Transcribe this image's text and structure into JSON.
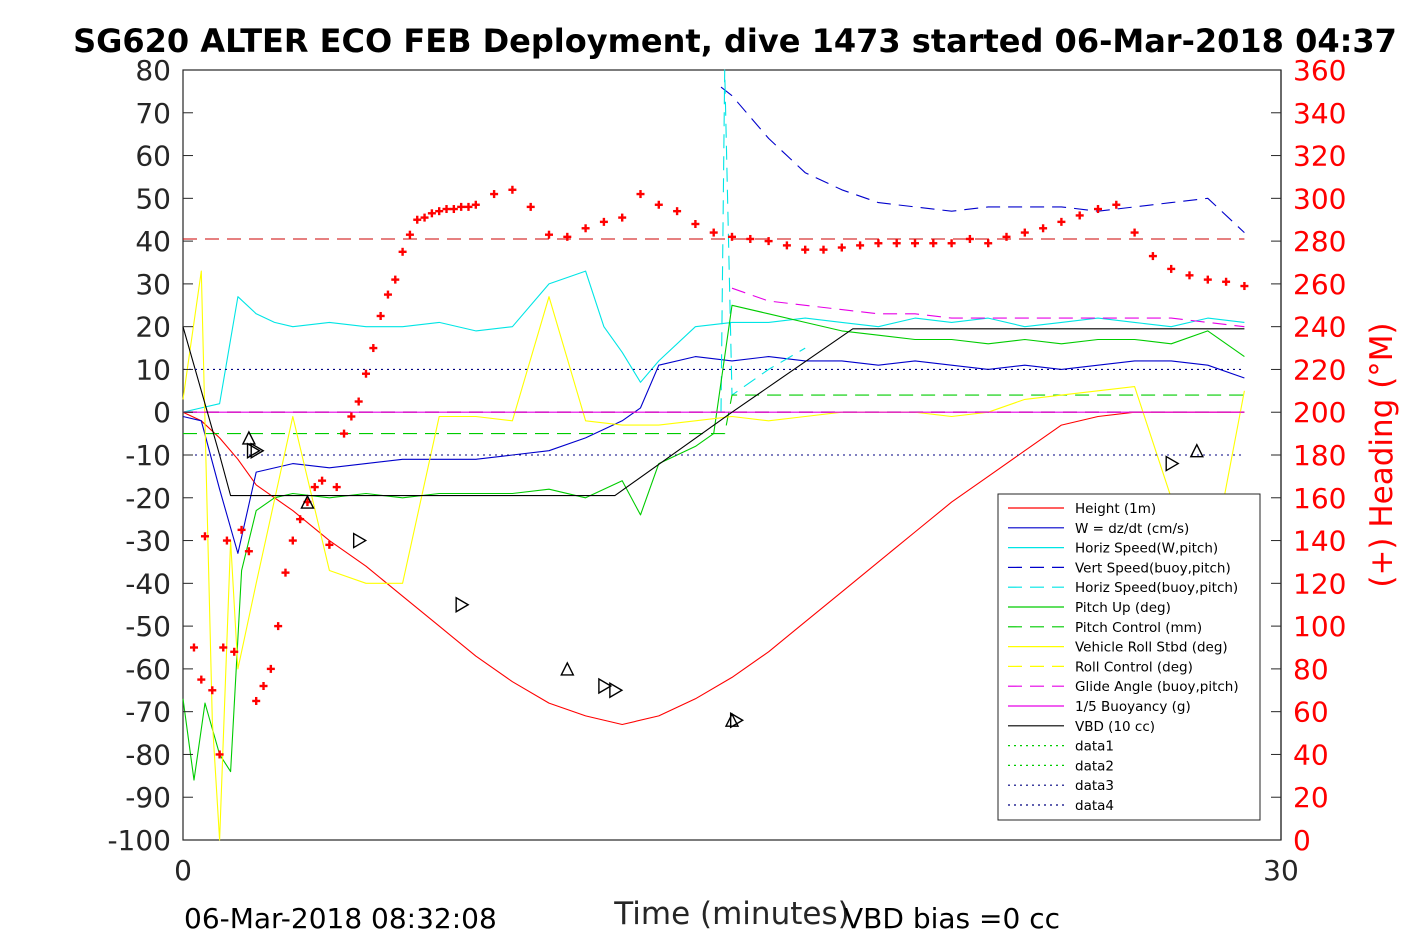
{
  "chart_data": {
    "type": "line",
    "title": "SG620 ALTER ECO FEB Deployment, dive 1473 started 06-Mar-2018 04:37",
    "xlabel": "Time (minutes)",
    "ylabel": "",
    "ylabel_right": "(+) Heading (°M)",
    "xlim": [
      0,
      30
    ],
    "ylim": [
      -100,
      80
    ],
    "ylim_right": [
      0,
      360
    ],
    "x_ticks": [
      0,
      30
    ],
    "y_ticks": [
      80,
      70,
      60,
      50,
      40,
      30,
      20,
      10,
      0,
      -10,
      -20,
      -30,
      -40,
      -50,
      -60,
      -70,
      -80,
      -90,
      -100
    ],
    "y_ticks_right": [
      360,
      340,
      320,
      300,
      280,
      260,
      240,
      220,
      200,
      180,
      160,
      140,
      120,
      100,
      80,
      60,
      40,
      20,
      0
    ],
    "grid": false,
    "legend_position": "bottom-right",
    "footer_left": "06-Mar-2018 08:32:08",
    "footer_right": "VBD bias =0 cc",
    "colors": {
      "height": "#ff0000",
      "w": "#0000cc",
      "horiz_w": "#00e5e5",
      "vert_buoy": "#0000cc",
      "horiz_buoy": "#00e5e5",
      "pitch": "#00cc00",
      "pitch_ctl": "#00cc00",
      "roll": "#ffff00",
      "roll_ctl": "#ffff00",
      "glide": "#e600e6",
      "buoyancy": "#e600e6",
      "vbd": "#000000",
      "heading": "#ff0000",
      "heading_ref": "#cc0000",
      "w_ref": "#000080",
      "zero_ref": "#7f00ff"
    },
    "series": [
      {
        "name": "Height (1m)",
        "style": "solid",
        "color": "#ff0000",
        "x": [
          0,
          0.5,
          1.0,
          1.5,
          2.0,
          3.0,
          4.0,
          5.0,
          6.0,
          7.0,
          8.0,
          9.0,
          10.0,
          11.0,
          12.0,
          13.0,
          14.0,
          15.0,
          16.0,
          17.0,
          18.0,
          19.0,
          20.0,
          21.0,
          22.0,
          23.0,
          24.0,
          25.0,
          26.0,
          27.0,
          28.0,
          29.0
        ],
        "values": [
          0,
          -2,
          -6,
          -11,
          -17,
          -23,
          -30,
          -36,
          -43,
          -50,
          -57,
          -63,
          -68,
          -71,
          -73,
          -71,
          -67,
          -62,
          -56,
          -49,
          -42,
          -35,
          -28,
          -21,
          -15,
          -9,
          -3,
          -1,
          0,
          0,
          0,
          0
        ]
      },
      {
        "name": "W = dz/dt (cm/s)",
        "style": "solid",
        "color": "#0000cc",
        "x": [
          0,
          0.5,
          1.0,
          1.5,
          2.0,
          3.0,
          4.0,
          5.0,
          6.0,
          7.0,
          8.0,
          9.0,
          10.0,
          11.0,
          12.0,
          12.5,
          13.0,
          14.0,
          15.0,
          16.0,
          17.0,
          18.0,
          19.0,
          20.0,
          21.0,
          22.0,
          23.0,
          24.0,
          25.0,
          26.0,
          27.0,
          28.0,
          29.0
        ],
        "values": [
          -1,
          -2,
          -18,
          -33,
          -14,
          -12,
          -13,
          -12,
          -11,
          -11,
          -11,
          -10,
          -9,
          -6,
          -2,
          1,
          11,
          13,
          12,
          13,
          12,
          12,
          11,
          12,
          11,
          10,
          11,
          10,
          11,
          12,
          12,
          11,
          8
        ]
      },
      {
        "name": "Horiz Speed(W,pitch)",
        "style": "solid",
        "color": "#00e5e5",
        "x": [
          0,
          0.5,
          1.0,
          1.5,
          2.0,
          2.5,
          3.0,
          4.0,
          5.0,
          6.0,
          7.0,
          8.0,
          9.0,
          10.0,
          11.0,
          11.5,
          12.0,
          12.5,
          13.0,
          14.0,
          15.0,
          16.0,
          17.0,
          18.0,
          19.0,
          20.0,
          21.0,
          22.0,
          23.0,
          24.0,
          25.0,
          26.0,
          27.0,
          28.0,
          29.0
        ],
        "values": [
          0,
          1,
          2,
          27,
          23,
          21,
          20,
          21,
          20,
          20,
          21,
          19,
          20,
          30,
          33,
          20,
          14,
          7,
          12,
          20,
          21,
          21,
          22,
          21,
          20,
          22,
          21,
          22,
          20,
          21,
          22,
          21,
          20,
          22,
          21
        ]
      },
      {
        "name": "Vert Speed(buoy,pitch)",
        "style": "dashed",
        "color": "#0000cc",
        "x": [
          14.7,
          15.0,
          16.0,
          17.0,
          18.0,
          19.0,
          20.0,
          21.0,
          22.0,
          23.0,
          24.0,
          25.0,
          26.0,
          27.0,
          28.0,
          29.0
        ],
        "values": [
          76,
          74,
          64,
          56,
          52,
          49,
          48,
          47,
          48,
          48,
          48,
          47,
          48,
          49,
          50,
          42
        ]
      },
      {
        "name": "Horiz Speed(buoy,pitch)",
        "style": "dashed",
        "color": "#00e5e5",
        "x": [
          14.7,
          14.8,
          15.0,
          16.0,
          17.0
        ],
        "values": [
          0,
          80,
          4,
          10,
          15
        ]
      },
      {
        "name": "Pitch Up (deg)",
        "style": "solid",
        "color": "#00cc00",
        "x": [
          0,
          0.3,
          0.6,
          1.0,
          1.3,
          1.6,
          2.0,
          2.5,
          3.0,
          4.0,
          5.0,
          6.0,
          7.0,
          8.0,
          9.0,
          10.0,
          11.0,
          12.0,
          12.5,
          13.0,
          14.0,
          14.5,
          15.0,
          16.0,
          17.0,
          18.0,
          19.0,
          20.0,
          21.0,
          22.0,
          23.0,
          24.0,
          25.0,
          26.0,
          27.0,
          28.0,
          29.0
        ],
        "values": [
          -67,
          -86,
          -68,
          -80,
          -84,
          -37,
          -23,
          -20,
          -19,
          -20,
          -19,
          -20,
          -19,
          -19,
          -19,
          -18,
          -20,
          -16,
          -24,
          -12,
          -8,
          -5,
          25,
          23,
          21,
          19,
          18,
          17,
          17,
          16,
          17,
          16,
          17,
          17,
          16,
          19,
          13
        ]
      },
      {
        "name": "Pitch Control (mm)",
        "style": "dashed",
        "color": "#00cc00",
        "x": [
          0,
          14.8,
          15.0,
          29.0
        ],
        "values": [
          -5,
          -5,
          4,
          4
        ]
      },
      {
        "name": "Vehicle Roll Stbd (deg)",
        "style": "solid",
        "color": "#ffff00",
        "x": [
          0,
          0.5,
          0.8,
          1.0,
          1.3,
          1.5,
          2.0,
          3.0,
          4.0,
          5.0,
          6.0,
          7.0,
          8.0,
          9.0,
          10.0,
          11.0,
          12.0,
          13.0,
          14.0,
          15.0,
          16.0,
          17.0,
          18.0,
          19.0,
          20.0,
          21.0,
          22.0,
          23.0,
          24.0,
          25.0,
          26.0,
          27.0,
          28.0,
          29.0
        ],
        "values": [
          3,
          33,
          -72,
          -100,
          -30,
          -60,
          -40,
          -1,
          -37,
          -40,
          -40,
          -1,
          -1,
          -2,
          27,
          -2,
          -3,
          -3,
          -2,
          -1,
          -2,
          -1,
          0,
          0,
          0,
          -1,
          0,
          3,
          4,
          5,
          6,
          -20,
          -40,
          5
        ]
      },
      {
        "name": "Roll Control (deg)",
        "style": "dashed",
        "color": "#ffff00",
        "x": [
          0,
          29.0
        ],
        "values": [
          0,
          0
        ]
      },
      {
        "name": "Glide Angle (buoy,pitch)",
        "style": "dashed",
        "color": "#e600e6",
        "x": [
          15.0,
          16.0,
          17.0,
          18.0,
          19.0,
          20.0,
          21.0,
          22.0,
          23.0,
          24.0,
          25.0,
          26.0,
          27.0,
          28.0,
          29.0
        ],
        "values": [
          29,
          26,
          25,
          24,
          23,
          23,
          22,
          22,
          22,
          22,
          22,
          22,
          22,
          21,
          20
        ]
      },
      {
        "name": "1/5 Buoyancy (g)",
        "style": "solid",
        "color": "#e600e6",
        "x": [
          0,
          29.0
        ],
        "values": [
          0,
          0
        ]
      },
      {
        "name": "VBD (10 cc)",
        "style": "solid",
        "color": "#000000",
        "x": [
          0,
          0.5,
          1.0,
          1.3,
          2.0,
          11.8,
          15.0,
          18.3,
          29.0
        ],
        "values": [
          20,
          5,
          -10,
          -19.5,
          -19.5,
          -19.5,
          0,
          19.5,
          19.5
        ]
      },
      {
        "name": "data1",
        "style": "dotted",
        "color": "#00cc00",
        "x": [],
        "values": []
      },
      {
        "name": "data2",
        "style": "dotted",
        "color": "#00cc00",
        "x": [],
        "values": []
      },
      {
        "name": "data3",
        "style": "dotted",
        "color": "#000080",
        "x": [
          0,
          29.0
        ],
        "values": [
          10,
          10
        ]
      },
      {
        "name": "data4",
        "style": "dotted",
        "color": "#000080",
        "x": [
          0,
          29.0
        ],
        "values": [
          -10,
          -10
        ]
      }
    ],
    "heading_points": {
      "x": [
        0.3,
        0.5,
        0.6,
        0.8,
        1.0,
        1.1,
        1.2,
        1.4,
        1.6,
        1.8,
        2.0,
        2.2,
        2.4,
        2.6,
        2.8,
        3.0,
        3.2,
        3.4,
        3.6,
        3.8,
        4.0,
        4.2,
        4.4,
        4.6,
        4.8,
        5.0,
        5.2,
        5.4,
        5.6,
        5.8,
        6.0,
        6.2,
        6.4,
        6.6,
        6.8,
        7.0,
        7.2,
        7.4,
        7.6,
        7.8,
        8.0,
        8.5,
        9.0,
        9.5,
        10.0,
        10.5,
        11.0,
        11.5,
        12.0,
        12.5,
        13.0,
        13.5,
        14.0,
        14.5,
        15.0,
        15.5,
        16.0,
        16.5,
        17.0,
        17.5,
        18.0,
        18.5,
        19.0,
        19.5,
        20.0,
        20.5,
        21.0,
        21.5,
        22.0,
        22.5,
        23.0,
        23.5,
        24.0,
        24.5,
        25.0,
        25.5,
        26.0,
        26.5,
        27.0,
        27.5,
        28.0,
        28.5,
        29.0
      ],
      "values": [
        90,
        75,
        142,
        70,
        40,
        90,
        140,
        88,
        145,
        135,
        65,
        72,
        80,
        100,
        125,
        140,
        150,
        158,
        165,
        168,
        138,
        165,
        190,
        198,
        205,
        218,
        230,
        245,
        255,
        262,
        275,
        283,
        290,
        291,
        293,
        294,
        295,
        295,
        296,
        296,
        297,
        302,
        304,
        296,
        283,
        282,
        286,
        289,
        291,
        302,
        297,
        294,
        288,
        284,
        282,
        281,
        280,
        278,
        276,
        276,
        277,
        278,
        279,
        279,
        279,
        279,
        279,
        281,
        279,
        282,
        284,
        286,
        289,
        292,
        295,
        297,
        284,
        273,
        267,
        264,
        262,
        261,
        259
      ]
    },
    "triangle_markers": {
      "x": [
        1.8,
        1.9,
        2.0,
        3.4,
        4.8,
        7.6,
        10.5,
        11.5,
        11.8,
        15.0,
        15.1,
        27.0,
        27.7
      ],
      "values": [
        -6,
        -9,
        -9,
        -21,
        -30,
        -45,
        -60,
        -64,
        -65,
        -72,
        -72,
        -12,
        -9
      ]
    },
    "heading_ref": 281
  }
}
